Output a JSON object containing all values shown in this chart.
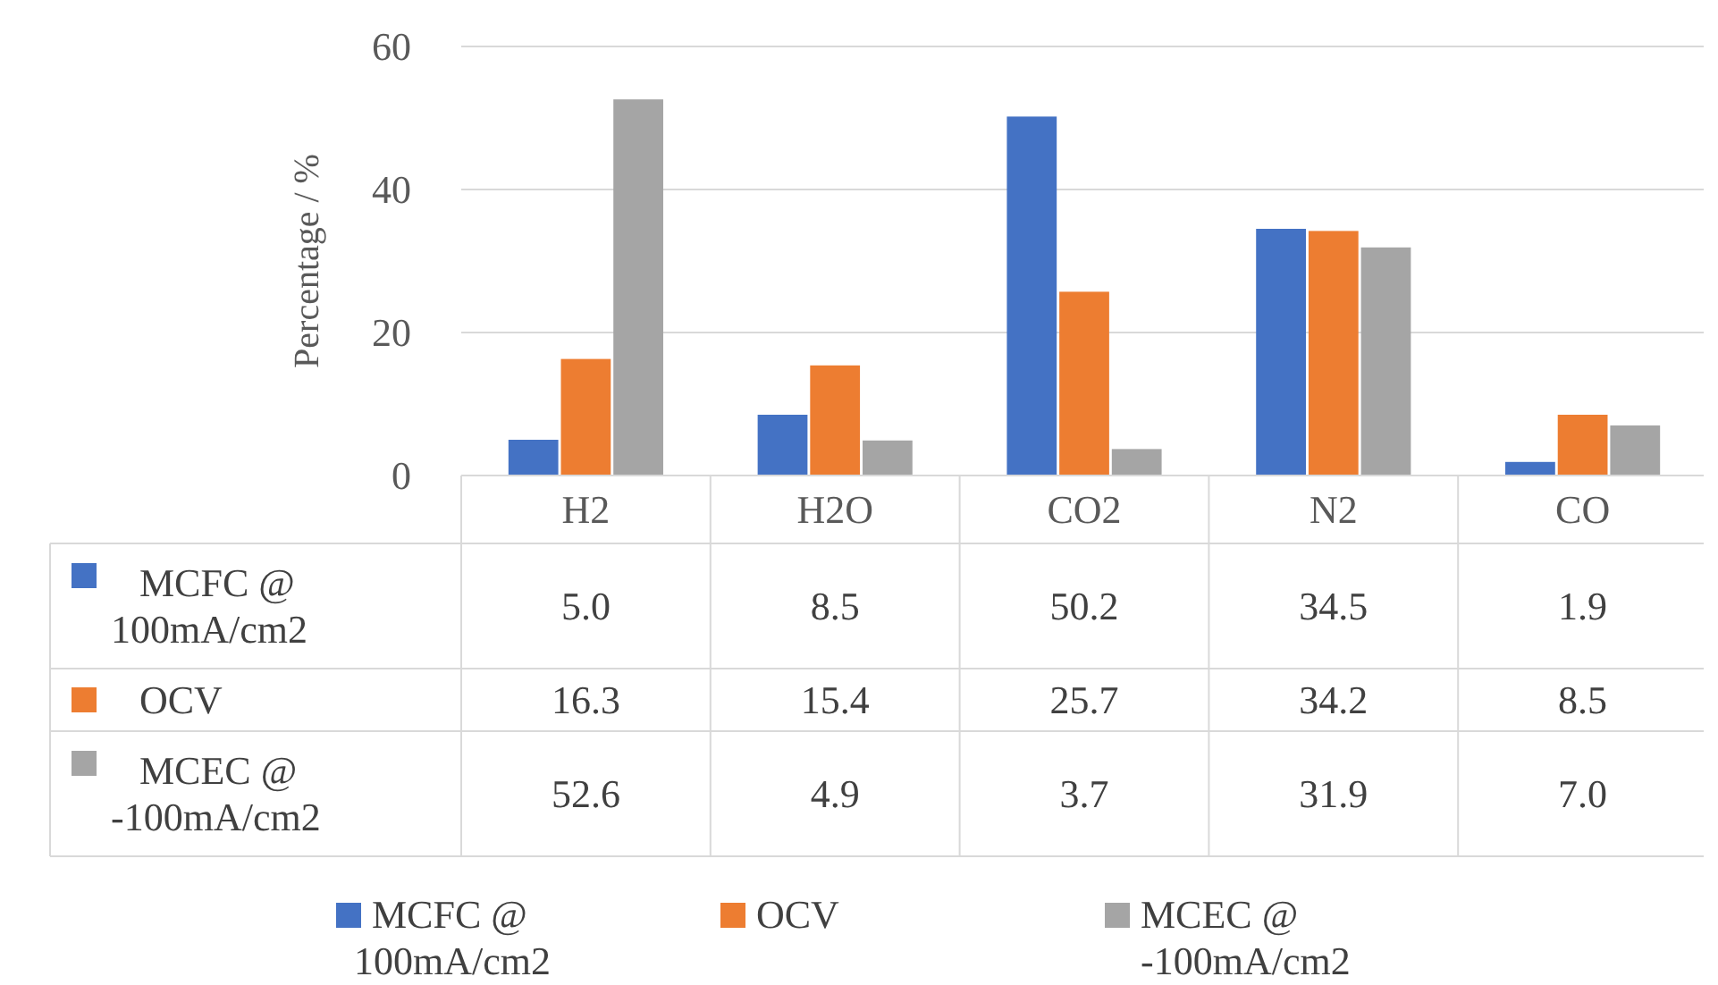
{
  "chart_data": {
    "type": "bar",
    "ylabel": "Percentage / %",
    "categories": [
      "H2",
      "H2O",
      "CO2",
      "N2",
      "CO"
    ],
    "series": [
      {
        "name": "MCFC @ 100mA/cm2",
        "color": "#4472c4",
        "values": [
          5.0,
          8.5,
          50.2,
          34.5,
          1.9
        ],
        "value_labels": [
          "5.0",
          "8.5",
          "50.2",
          "34.5",
          "1.9"
        ]
      },
      {
        "name": "OCV",
        "color": "#ed7d31",
        "values": [
          16.3,
          15.4,
          25.7,
          34.2,
          8.5
        ],
        "value_labels": [
          "16.3",
          "15.4",
          "25.7",
          "34.2",
          "8.5"
        ]
      },
      {
        "name": "MCEC @ -100mA/cm2",
        "color": "#a5a5a5",
        "values": [
          52.6,
          4.9,
          3.7,
          31.9,
          7.0
        ],
        "value_labels": [
          "52.6",
          "4.9",
          "3.7",
          "31.9",
          "7.0"
        ]
      }
    ],
    "ylim": [
      0,
      60
    ],
    "yticks": [
      0,
      20,
      40,
      60
    ],
    "grid": "y",
    "legend": "bottom"
  }
}
